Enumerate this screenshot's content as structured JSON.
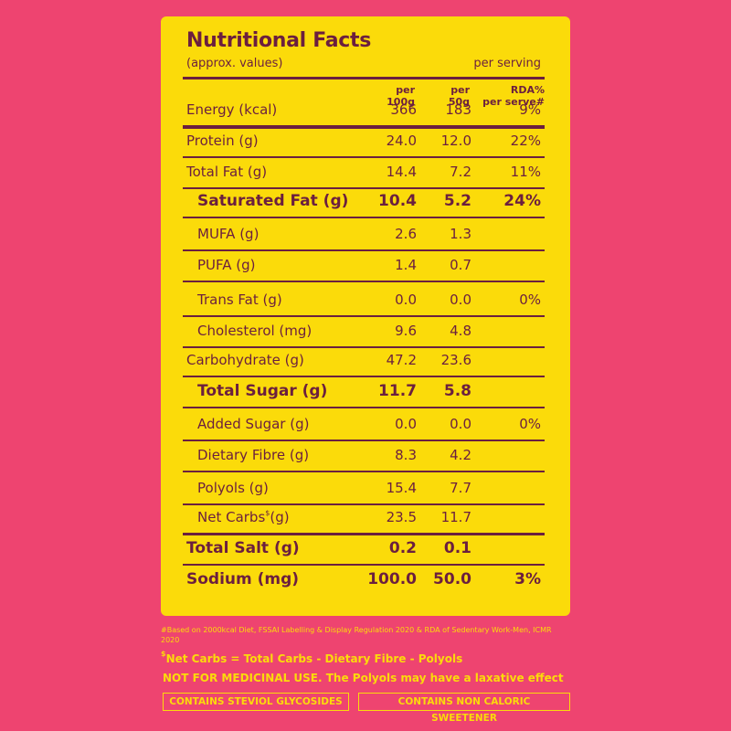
{
  "panel": {
    "title": "Nutritional Facts",
    "subtitle": "(approx. values)",
    "per_serving": "per serving"
  },
  "columns": {
    "col1": [
      "per",
      "100g"
    ],
    "col2": [
      "per",
      "50g"
    ],
    "col3": [
      "RDA%",
      "per serve#"
    ]
  },
  "rows": [
    {
      "label": "Energy (kcal)",
      "per100": "366",
      "per50": "183",
      "rda": "9%"
    },
    {
      "label": "Protein (g)",
      "per100": "24.0",
      "per50": "12.0",
      "rda": "22%"
    },
    {
      "label": "Total Fat (g)",
      "per100": "14.4",
      "per50": "7.2",
      "rda": "11%"
    },
    {
      "label": "Saturated Fat (g)",
      "per100": "10.4",
      "per50": "5.2",
      "rda": "24%"
    },
    {
      "label": "MUFA (g)",
      "per100": "2.6",
      "per50": "1.3",
      "rda": ""
    },
    {
      "label": "PUFA (g)",
      "per100": "1.4",
      "per50": "0.7",
      "rda": ""
    },
    {
      "label": "Trans Fat (g)",
      "per100": "0.0",
      "per50": "0.0",
      "rda": "0%"
    },
    {
      "label": "Cholesterol (mg)",
      "per100": "9.6",
      "per50": "4.8",
      "rda": ""
    },
    {
      "label": "Carbohydrate (g)",
      "per100": "47.2",
      "per50": "23.6",
      "rda": ""
    },
    {
      "label": "Total Sugar (g)",
      "per100": "11.7",
      "per50": "5.8",
      "rda": ""
    },
    {
      "label": "Added Sugar (g)",
      "per100": "0.0",
      "per50": "0.0",
      "rda": "0%"
    },
    {
      "label": "Dietary Fibre (g)",
      "per100": "8.3",
      "per50": "4.2",
      "rda": ""
    },
    {
      "label": "Polyols (g)",
      "per100": "15.4",
      "per50": "7.7",
      "rda": ""
    },
    {
      "label": "Net Carbs",
      "label_sup": "$",
      "label_suffix": "(g)",
      "per100": "23.5",
      "per50": "11.7",
      "rda": ""
    },
    {
      "label": "Total Salt (g)",
      "per100": "0.2",
      "per50": "0.1",
      "rda": ""
    },
    {
      "label": "Sodium (mg)",
      "per100": "100.0",
      "per50": "50.0",
      "rda": "3%"
    }
  ],
  "footnote": "#Based on 2000kcal Diet, FSSAI Labelling & Display Regulation 2020 & RDA of Sedentary Work-Men, ICMR 2020",
  "net_carbs_note": {
    "sup": "$",
    "text": "Net Carbs = Total Carbs - Dietary Fibre - Polyols"
  },
  "warning": "NOT FOR MEDICINAL USE. The Polyols may have a laxative effect",
  "badges": [
    "CONTAINS STEVIOL GLYCOSIDES",
    "CONTAINS NON CALORIC SWEETENER"
  ],
  "colors": {
    "background": "#ee4470",
    "panel": "#fbdb0a",
    "text": "#6b1f3f"
  }
}
